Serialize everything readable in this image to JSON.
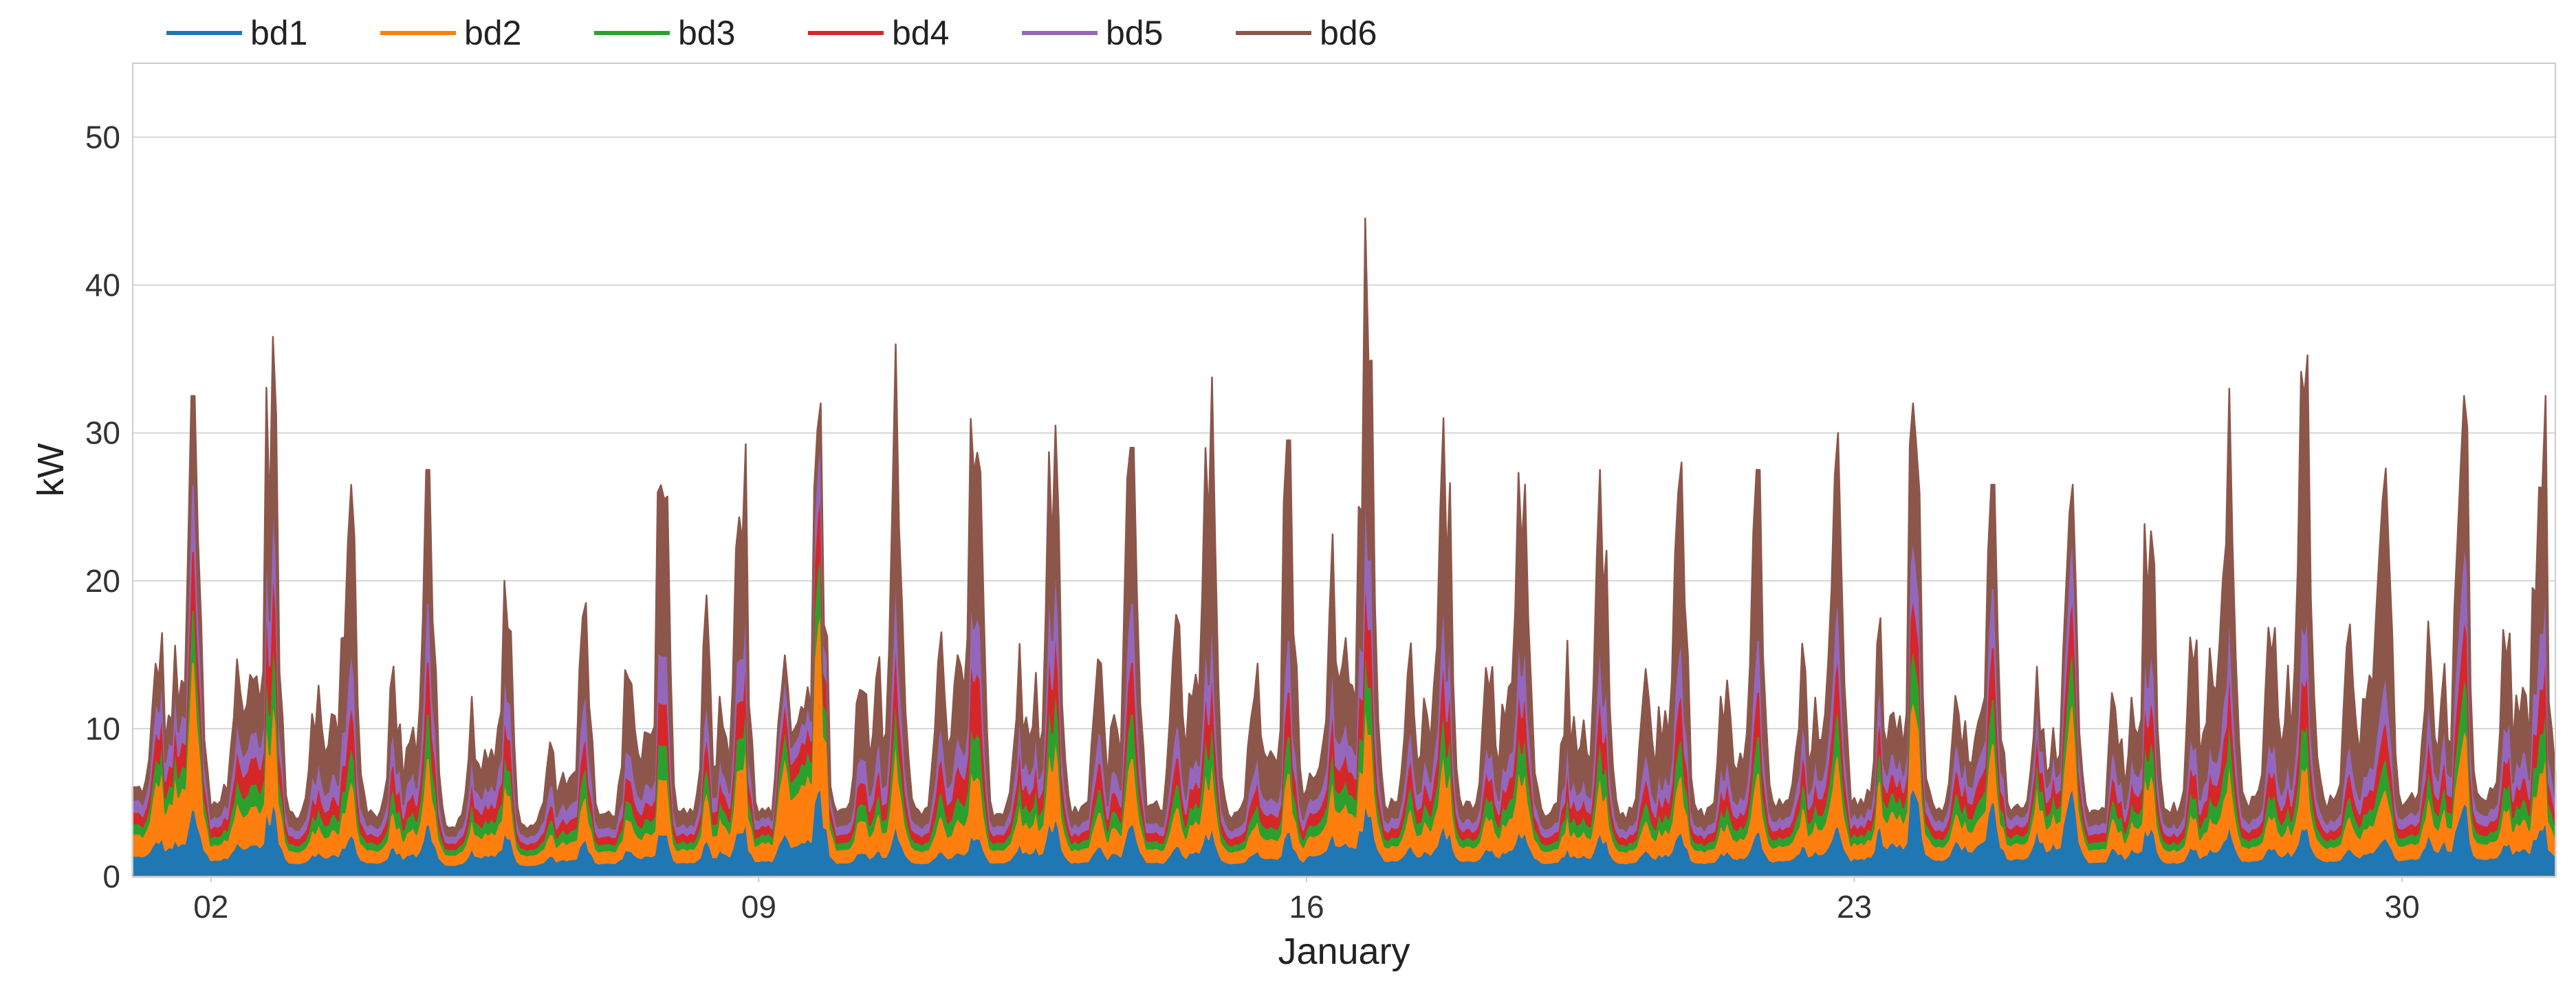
{
  "chart_data": {
    "type": "area",
    "stacked": true,
    "title": "",
    "xlabel": "January",
    "ylabel": "kW",
    "ylim": [
      0,
      55
    ],
    "yticks": [
      0,
      10,
      20,
      30,
      40,
      50
    ],
    "xlim": [
      "2022-01-01T00:00",
      "2022-01-31T23:00"
    ],
    "xticks": [
      {
        "date": "2022-01-02",
        "label": "02"
      },
      {
        "date": "2022-01-09",
        "label": "09"
      },
      {
        "date": "2022-01-16",
        "label": "16"
      },
      {
        "date": "2022-01-23",
        "label": "23"
      },
      {
        "date": "2022-01-30",
        "label": "30"
      }
    ],
    "grid": true,
    "legend_position": "top-left",
    "resolution": "hourly",
    "series": [
      {
        "name": "bd1",
        "color": "#1f77b4",
        "daily_peak": [
          4.5,
          5.0,
          3.0,
          3.5,
          3.0,
          2.5,
          3.0,
          4.0,
          6.0,
          3.5,
          3.0,
          4.0,
          3.5,
          3.5,
          3.0,
          5.0,
          3.5,
          3.5,
          3.0,
          3.0,
          3.0,
          3.5,
          6.0,
          5.0,
          6.0,
          3.5,
          3.5,
          3.5,
          3.0,
          5.0,
          4.0
        ]
      },
      {
        "name": "bd2",
        "color": "#ff7f0e",
        "daily_peak": [
          10.0,
          7.0,
          4.0,
          4.5,
          3.5,
          3.0,
          4.0,
          6.0,
          12.0,
          6.0,
          5.0,
          5.5,
          4.5,
          5.0,
          4.0,
          7.0,
          5.0,
          5.0,
          4.0,
          4.0,
          4.0,
          5.0,
          6.0,
          4.0,
          6.0,
          4.0,
          4.5,
          4.5,
          4.0,
          5.0,
          5.0
        ]
      },
      {
        "name": "bd3",
        "color": "#2ca02c",
        "daily_peak": [
          3.5,
          4.0,
          2.5,
          3.0,
          2.0,
          2.0,
          2.5,
          3.0,
          4.0,
          3.0,
          3.5,
          3.5,
          3.0,
          3.0,
          2.5,
          4.0,
          3.0,
          3.0,
          2.5,
          2.5,
          2.5,
          3.0,
          3.5,
          3.0,
          3.5,
          2.5,
          3.0,
          3.0,
          2.5,
          3.5,
          3.5
        ]
      },
      {
        "name": "bd4",
        "color": "#d62728",
        "daily_peak": [
          4.0,
          5.0,
          3.0,
          3.5,
          2.5,
          2.0,
          3.0,
          3.5,
          4.0,
          4.0,
          5.0,
          4.0,
          3.5,
          3.5,
          3.0,
          5.0,
          3.5,
          3.5,
          3.0,
          3.0,
          3.0,
          3.5,
          3.5,
          3.5,
          3.5,
          3.0,
          3.5,
          3.5,
          3.0,
          4.0,
          4.0
        ]
      },
      {
        "name": "bd5",
        "color": "#9467bd",
        "daily_peak": [
          4.5,
          4.5,
          4.0,
          4.0,
          3.0,
          3.0,
          3.5,
          4.0,
          3.5,
          4.5,
          4.5,
          4.5,
          4.0,
          4.0,
          3.5,
          6.0,
          4.0,
          4.0,
          3.5,
          3.5,
          3.5,
          4.0,
          4.0,
          4.0,
          4.0,
          3.5,
          4.0,
          4.0,
          3.5,
          5.0,
          5.0
        ]
      },
      {
        "name": "bd6",
        "color": "#8c564b",
        "daily_peak": [
          6.0,
          11.0,
          12.0,
          9.0,
          6.0,
          6.0,
          11.5,
          11.5,
          2.5,
          15.0,
          13.5,
          9.0,
          10.5,
          15.5,
          13.5,
          17.5,
          12.0,
          13.0,
          11.5,
          12.0,
          11.5,
          11.0,
          9.0,
          7.0,
          3.5,
          8.5,
          14.5,
          18.5,
          17.0,
          10.0,
          13.5
        ]
      }
    ],
    "daily_total_peak_kW": [
      32,
      36,
      28,
      27,
      20,
      18,
      31,
      32,
      31,
      35,
      36,
      31,
      28,
      34,
      30,
      45,
      33,
      33,
      28,
      30,
      28,
      30,
      29,
      27,
      29,
      25,
      32,
      37,
      33,
      32,
      35
    ],
    "daily_total_min_kW": [
      4.5,
      3.5,
      3.0,
      3.0,
      2.5,
      2.5,
      3.0,
      3.0,
      3.0,
      3.0,
      3.0,
      3.0,
      3.0,
      3.0,
      3.0,
      4.5,
      3.5,
      3.5,
      3.0,
      3.0,
      3.0,
      3.5,
      3.5,
      3.5,
      3.5,
      3.0,
      3.0,
      3.5,
      3.5,
      3.5,
      4.0
    ]
  }
}
